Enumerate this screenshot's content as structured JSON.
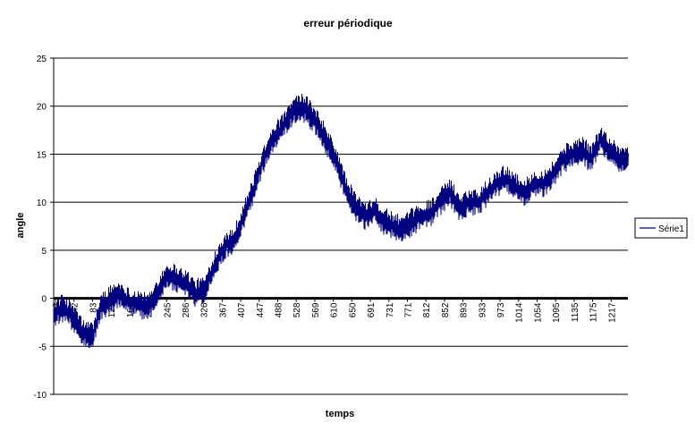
{
  "colors": {
    "series": "#000080",
    "grid": "#000000",
    "zero_line": "#000000",
    "background": "#ffffff"
  },
  "chart_data": {
    "type": "line",
    "title": "erreur périodique",
    "xlabel": "temps",
    "ylabel": "angle",
    "ylim": [
      -10,
      25
    ],
    "yticks": [
      -10,
      -5,
      0,
      5,
      10,
      15,
      20,
      25
    ],
    "grid": "horizontal",
    "legend_position": "right",
    "x_tick_labels": [
      "2",
      "42",
      "83",
      "123",
      "164",
      "204",
      "245",
      "286",
      "326",
      "367",
      "407",
      "447",
      "488",
      "528",
      "569",
      "610",
      "650",
      "691",
      "731",
      "771",
      "812",
      "852",
      "893",
      "933",
      "973",
      "1014",
      "1054",
      "1095",
      "1135",
      "1175",
      "1217"
    ],
    "series": [
      {
        "name": "Série1",
        "x": [
          2,
          20,
          42,
          60,
          83,
          100,
          123,
          140,
          164,
          180,
          204,
          225,
          245,
          265,
          286,
          305,
          326,
          345,
          367,
          387,
          407,
          427,
          447,
          467,
          488,
          508,
          528,
          545,
          569,
          590,
          610,
          630,
          650,
          670,
          691,
          710,
          731,
          750,
          771,
          790,
          812,
          830,
          852,
          872,
          893,
          912,
          933,
          953,
          973,
          993,
          1014,
          1034,
          1054,
          1075,
          1095,
          1115,
          1135,
          1155,
          1175,
          1195,
          1217,
          1235
        ],
        "values": [
          -1.5,
          -1,
          -2,
          -3.5,
          -4,
          -1,
          0,
          0.5,
          -0.5,
          -0.5,
          -1,
          1,
          2.5,
          2,
          1.5,
          0.5,
          1,
          3.5,
          5.5,
          6,
          8.5,
          11,
          14,
          16.5,
          17.5,
          19,
          20,
          19.5,
          18,
          16,
          14,
          11,
          9.5,
          8.5,
          9,
          8,
          7.5,
          7,
          8,
          8.5,
          9,
          10,
          11,
          9.5,
          10,
          10,
          11,
          12,
          12.5,
          11.5,
          11,
          12,
          12,
          13,
          14.5,
          15,
          15.5,
          14.5,
          16.5,
          15.5,
          14.5,
          14.5
        ]
      }
    ]
  }
}
